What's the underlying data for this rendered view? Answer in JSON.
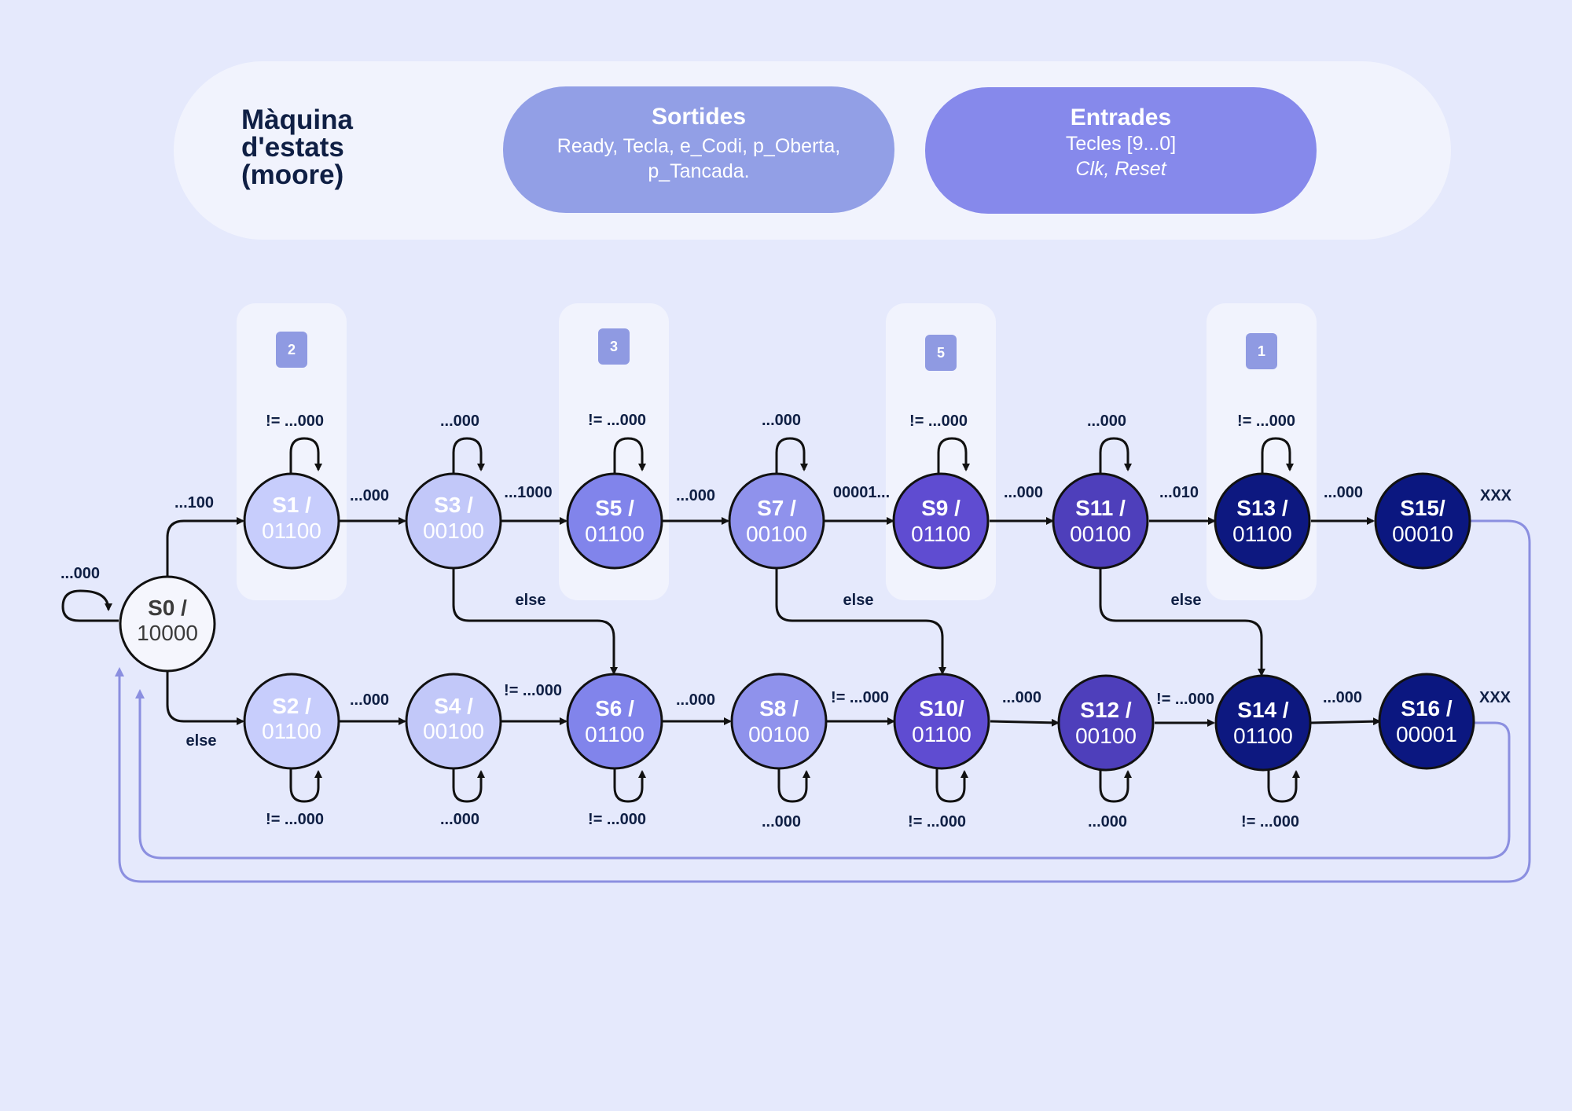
{
  "header": {
    "title": "Màquina\nd'estats\n(moore)",
    "outputs": {
      "title": "Sortides",
      "text": "Ready, Tecla, e_Codi, p_Oberta, p_Tancada."
    },
    "inputs": {
      "title": "Entrades",
      "line1": "Tecles [9...0]",
      "line2": "Clk, Reset"
    }
  },
  "digits": [
    "2",
    "3",
    "5",
    "1"
  ],
  "colors": {
    "background": "#e5e9fc",
    "panel": "#f1f3fd",
    "outputs_pill": "#929fe6",
    "inputs_pill": "#8689eb",
    "return_arrow": "#8b8fe0",
    "state_palette": [
      "#f5f6fd",
      "#c7cdfc",
      "#c2c8f9",
      "#8184eb",
      "#5f4cd1",
      "#4e3fbb",
      "#10197f",
      "#0b1780"
    ]
  },
  "states": [
    {
      "id": "S0",
      "name": "S0 /",
      "code": "10000",
      "fill": "#f5f6fd",
      "text": "#3b3b3b"
    },
    {
      "id": "S1",
      "name": "S1 /",
      "code": "01100",
      "fill": "#c7cdfc",
      "text": "#ffffff"
    },
    {
      "id": "S2",
      "name": "S2 /",
      "code": "01100",
      "fill": "#c7cdfc",
      "text": "#ffffff"
    },
    {
      "id": "S3",
      "name": "S3 /",
      "code": "00100",
      "fill": "#c2c8f9",
      "text": "#ffffff"
    },
    {
      "id": "S4",
      "name": "S4 /",
      "code": "00100",
      "fill": "#c2c8f9",
      "text": "#ffffff"
    },
    {
      "id": "S5",
      "name": "S5 /",
      "code": "01100",
      "fill": "#8184eb",
      "text": "#ffffff"
    },
    {
      "id": "S6",
      "name": "S6 /",
      "code": "01100",
      "fill": "#8184eb",
      "text": "#ffffff"
    },
    {
      "id": "S7",
      "name": "S7 /",
      "code": "00100",
      "fill": "#8f92ec",
      "text": "#ffffff"
    },
    {
      "id": "S8",
      "name": "S8 /",
      "code": "00100",
      "fill": "#8f92ec",
      "text": "#ffffff"
    },
    {
      "id": "S9",
      "name": "S9 /",
      "code": "01100",
      "fill": "#5f4cd1",
      "text": "#ffffff"
    },
    {
      "id": "S10",
      "name": "S10/",
      "code": "01100",
      "fill": "#5f4cd1",
      "text": "#ffffff"
    },
    {
      "id": "S11",
      "name": "S11 /",
      "code": "00100",
      "fill": "#4e3fbb",
      "text": "#ffffff"
    },
    {
      "id": "S12",
      "name": "S12 /",
      "code": "00100",
      "fill": "#4e3fbb",
      "text": "#ffffff"
    },
    {
      "id": "S13",
      "name": "S13 /",
      "code": "01100",
      "fill": "#0d1880",
      "text": "#ffffff"
    },
    {
      "id": "S14",
      "name": "S14 /",
      "code": "01100",
      "fill": "#0d1880",
      "text": "#ffffff"
    },
    {
      "id": "S15",
      "name": "S15/",
      "code": "00010",
      "fill": "#0b1780",
      "text": "#ffffff"
    },
    {
      "id": "S16",
      "name": "S16 /",
      "code": "00001",
      "fill": "#0b1780",
      "text": "#ffffff"
    }
  ],
  "transitions": {
    "s0_self": "...000",
    "s0_s1": "...100",
    "s0_s2": "else",
    "s1_self": "!= ...000",
    "s1_s3": "...000",
    "s3_self": "...000",
    "s3_s5": "...1000",
    "s3_s6": "else",
    "s5_self": "!= ...000",
    "s5_s7": "...000",
    "s7_self": "...000",
    "s7_s9": "00001...",
    "s7_s10": "else",
    "s9_self": "!= ...000",
    "s9_s11": "...000",
    "s11_self": "...000",
    "s11_s13": "...010",
    "s11_s14": "else",
    "s13_self": "!= ...000",
    "s13_s15": "...000",
    "s15_out": "XXX",
    "s2_self": "!= ...000",
    "s2_s4": "...000",
    "s4_self": "...000",
    "s4_s6": "!= ...000",
    "s6_self": "!= ...000",
    "s6_s8": "...000",
    "s8_self": "...000",
    "s8_s10": "!= ...000",
    "s10_self": "!= ...000",
    "s10_s12": "...000",
    "s12_self": "...000",
    "s12_s14": "!= ...000",
    "s14_self": "!= ...000",
    "s14_s16": "...000",
    "s16_out": "XXX"
  }
}
